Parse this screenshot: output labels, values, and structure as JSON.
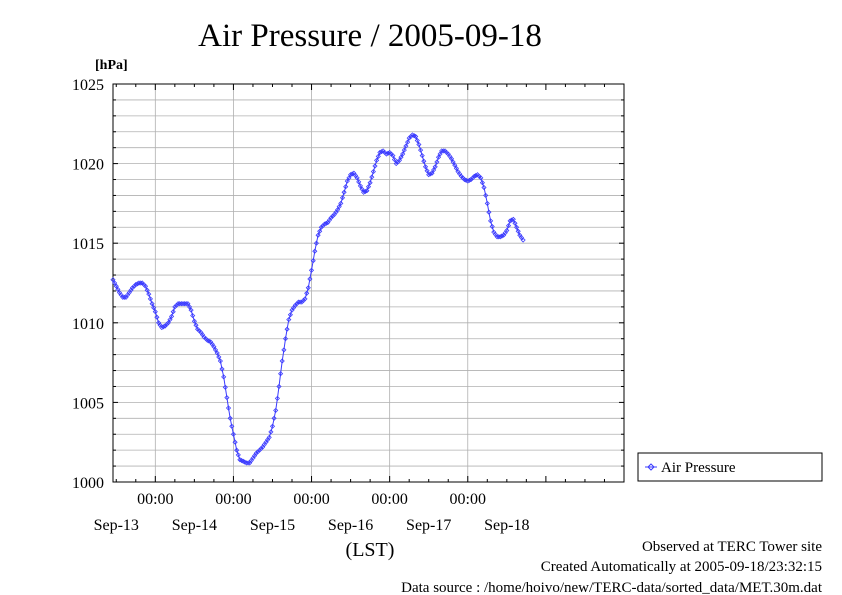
{
  "chart_data": {
    "type": "line",
    "title": "Air Pressure / 2005-09-18",
    "ylabel": "[hPa]",
    "xlabel": "(LST)",
    "ylim": [
      1000,
      1025
    ],
    "yticks": [
      "1025",
      "1020",
      "1015",
      "1010",
      "1005",
      "1000"
    ],
    "x_range_hours": [
      -13,
      144
    ],
    "x_time_labels": [
      "00:00",
      "00:00",
      "00:00",
      "00:00",
      "00:00"
    ],
    "x_date_labels": [
      "Sep-13",
      "Sep-14",
      "Sep-15",
      "Sep-16",
      "Sep-17",
      "Sep-18"
    ],
    "grid": true,
    "legend_position": "right",
    "series": [
      {
        "name": "Air Pressure",
        "color": "#3b3bff",
        "marker": "diamond",
        "points": [
          [
            -13,
            1012.7
          ],
          [
            -12,
            1012.3
          ],
          [
            -11,
            1011.9
          ],
          [
            -10,
            1011.6
          ],
          [
            -9,
            1011.6
          ],
          [
            -8,
            1011.9
          ],
          [
            -7,
            1012.2
          ],
          [
            -6,
            1012.4
          ],
          [
            -5,
            1012.5
          ],
          [
            -4,
            1012.5
          ],
          [
            -3,
            1012.3
          ],
          [
            -2,
            1011.8
          ],
          [
            -1,
            1011.2
          ],
          [
            0,
            1010.7
          ],
          [
            1,
            1010.0
          ],
          [
            2,
            1009.7
          ],
          [
            3,
            1009.8
          ],
          [
            4,
            1010.0
          ],
          [
            5,
            1010.4
          ],
          [
            6,
            1011.0
          ],
          [
            7,
            1011.2
          ],
          [
            8,
            1011.2
          ],
          [
            9,
            1011.2
          ],
          [
            10,
            1011.2
          ],
          [
            11,
            1010.8
          ],
          [
            12,
            1010.1
          ],
          [
            13,
            1009.6
          ],
          [
            14,
            1009.4
          ],
          [
            15,
            1009.1
          ],
          [
            16,
            1008.9
          ],
          [
            17,
            1008.8
          ],
          [
            18,
            1008.5
          ],
          [
            19,
            1008.1
          ],
          [
            20,
            1007.6
          ],
          [
            21,
            1006.6
          ],
          [
            22,
            1005.3
          ],
          [
            23,
            1004.0
          ],
          [
            24,
            1003.0
          ],
          [
            25,
            1002.0
          ],
          [
            26,
            1001.4
          ],
          [
            27,
            1001.3
          ],
          [
            28,
            1001.2
          ],
          [
            29,
            1001.2
          ],
          [
            30,
            1001.5
          ],
          [
            31,
            1001.8
          ],
          [
            32,
            1002.0
          ],
          [
            33,
            1002.2
          ],
          [
            34,
            1002.5
          ],
          [
            35,
            1002.8
          ],
          [
            36,
            1003.5
          ],
          [
            37,
            1004.5
          ],
          [
            38,
            1006.0
          ],
          [
            39,
            1007.6
          ],
          [
            40,
            1009.0
          ],
          [
            41,
            1010.2
          ],
          [
            42,
            1010.8
          ],
          [
            43,
            1011.1
          ],
          [
            44,
            1011.3
          ],
          [
            45,
            1011.3
          ],
          [
            46,
            1011.5
          ],
          [
            47,
            1012.2
          ],
          [
            48,
            1013.3
          ],
          [
            49,
            1014.5
          ],
          [
            50,
            1015.5
          ],
          [
            51,
            1016.0
          ],
          [
            52,
            1016.2
          ],
          [
            53,
            1016.3
          ],
          [
            54,
            1016.6
          ],
          [
            55,
            1016.8
          ],
          [
            56,
            1017.1
          ],
          [
            57,
            1017.5
          ],
          [
            58,
            1018.2
          ],
          [
            59,
            1018.9
          ],
          [
            60,
            1019.3
          ],
          [
            61,
            1019.4
          ],
          [
            62,
            1019.1
          ],
          [
            63,
            1018.6
          ],
          [
            64,
            1018.2
          ],
          [
            65,
            1018.3
          ],
          [
            66,
            1018.8
          ],
          [
            67,
            1019.5
          ],
          [
            68,
            1020.2
          ],
          [
            69,
            1020.7
          ],
          [
            70,
            1020.8
          ],
          [
            71,
            1020.6
          ],
          [
            72,
            1020.7
          ],
          [
            73,
            1020.5
          ],
          [
            74,
            1020.0
          ],
          [
            75,
            1020.2
          ],
          [
            76,
            1020.6
          ],
          [
            77,
            1021.1
          ],
          [
            78,
            1021.6
          ],
          [
            79,
            1021.8
          ],
          [
            80,
            1021.7
          ],
          [
            81,
            1021.2
          ],
          [
            82,
            1020.5
          ],
          [
            83,
            1019.8
          ],
          [
            84,
            1019.3
          ],
          [
            85,
            1019.4
          ],
          [
            86,
            1019.8
          ],
          [
            87,
            1020.4
          ],
          [
            88,
            1020.8
          ],
          [
            89,
            1020.8
          ],
          [
            90,
            1020.6
          ],
          [
            91,
            1020.3
          ],
          [
            92,
            1019.9
          ],
          [
            93,
            1019.5
          ],
          [
            94,
            1019.2
          ],
          [
            95,
            1019.0
          ],
          [
            96,
            1018.9
          ],
          [
            97,
            1019.0
          ],
          [
            98,
            1019.2
          ],
          [
            99,
            1019.3
          ],
          [
            100,
            1019.1
          ],
          [
            101,
            1018.5
          ],
          [
            102,
            1017.5
          ],
          [
            103,
            1016.4
          ],
          [
            104,
            1015.7
          ],
          [
            105,
            1015.4
          ],
          [
            106,
            1015.4
          ],
          [
            107,
            1015.5
          ],
          [
            108,
            1015.8
          ],
          [
            109,
            1016.4
          ],
          [
            110,
            1016.5
          ],
          [
            111,
            1016.0
          ],
          [
            112,
            1015.5
          ],
          [
            113,
            1015.2
          ]
        ]
      }
    ]
  },
  "footer": {
    "observed": "Observed at TERC Tower site",
    "created": "Created Automatically at 2005-09-18/23:32:15",
    "source": "Data source : /home/hoivo/new/TERC-data/sorted_data/MET.30m.dat"
  }
}
